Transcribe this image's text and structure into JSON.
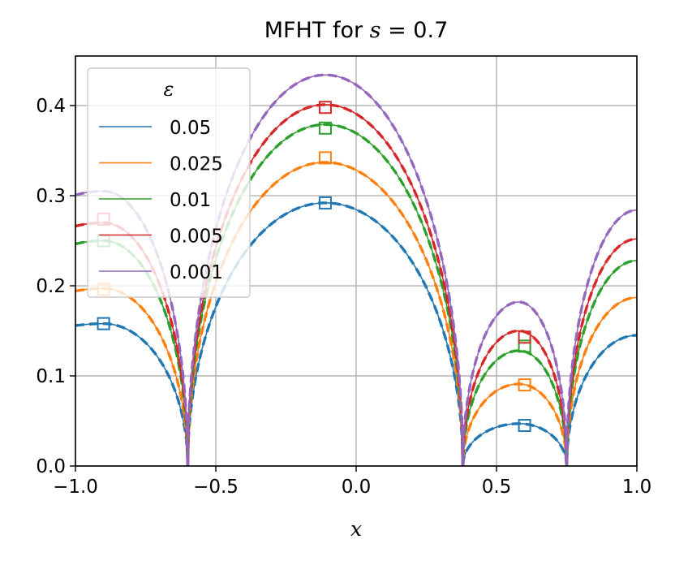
{
  "chart_data": {
    "type": "line",
    "title_prefix": "MFHT for ",
    "title_var": "s",
    "title_suffix": " = 0.7",
    "xlabel": "x",
    "ylabel": "",
    "xlim": [
      -1.0,
      1.0
    ],
    "ylim": [
      0.0,
      0.455
    ],
    "x_ticks": [
      "−1.0",
      "−0.5",
      "0.0",
      "0.5",
      "1.0"
    ],
    "x_tick_values": [
      -1.0,
      -0.5,
      0.0,
      0.5,
      1.0
    ],
    "y_ticks": [
      "0.0",
      "0.1",
      "0.2",
      "0.3",
      "0.4"
    ],
    "y_tick_values": [
      0.0,
      0.1,
      0.2,
      0.3,
      0.4
    ],
    "grid": true,
    "legend_placement": "upper-left",
    "legend_title": "ε",
    "zeros": [
      -0.6,
      0.38,
      0.75
    ],
    "series": [
      {
        "name": "0.05",
        "color": "#1f77b4",
        "peaks": [
          0.158,
          0.292,
          0.047,
          0.145
        ],
        "centers": [
          -0.9,
          -0.11,
          0.58,
          1.0
        ],
        "halfwidth_cut": [
          0.35,
          0.41,
          0.1,
          0.21
        ],
        "markers": [
          [
            -0.9,
            0.158
          ],
          [
            -0.11,
            0.292
          ],
          [
            0.6,
            0.045
          ]
        ]
      },
      {
        "name": "0.025",
        "color": "#ff7f0e",
        "peaks": [
          0.197,
          0.337,
          0.091,
          0.187
        ],
        "centers": [
          -0.9,
          -0.11,
          0.58,
          1.0
        ],
        "markers": [
          [
            -0.9,
            0.196
          ],
          [
            -0.11,
            0.342
          ],
          [
            0.6,
            0.09
          ]
        ]
      },
      {
        "name": "0.01",
        "color": "#2ca02c",
        "peaks": [
          0.25,
          0.379,
          0.128,
          0.228
        ],
        "centers": [
          -0.9,
          -0.11,
          0.58,
          1.0
        ],
        "markers": [
          [
            -0.9,
            0.25
          ],
          [
            -0.11,
            0.375
          ],
          [
            0.6,
            0.133
          ]
        ]
      },
      {
        "name": "0.005",
        "color": "#d62728",
        "peaks": [
          0.27,
          0.401,
          0.15,
          0.252
        ],
        "centers": [
          -0.9,
          -0.11,
          0.58,
          1.0
        ],
        "markers": [
          [
            -0.9,
            0.274
          ],
          [
            -0.11,
            0.398
          ],
          [
            0.6,
            0.143
          ]
        ]
      },
      {
        "name": "0.001",
        "color": "#9467bd",
        "peaks": [
          0.305,
          0.434,
          0.182,
          0.284
        ],
        "centers": [
          -0.9,
          -0.11,
          0.58,
          1.0
        ],
        "markers": []
      }
    ]
  }
}
